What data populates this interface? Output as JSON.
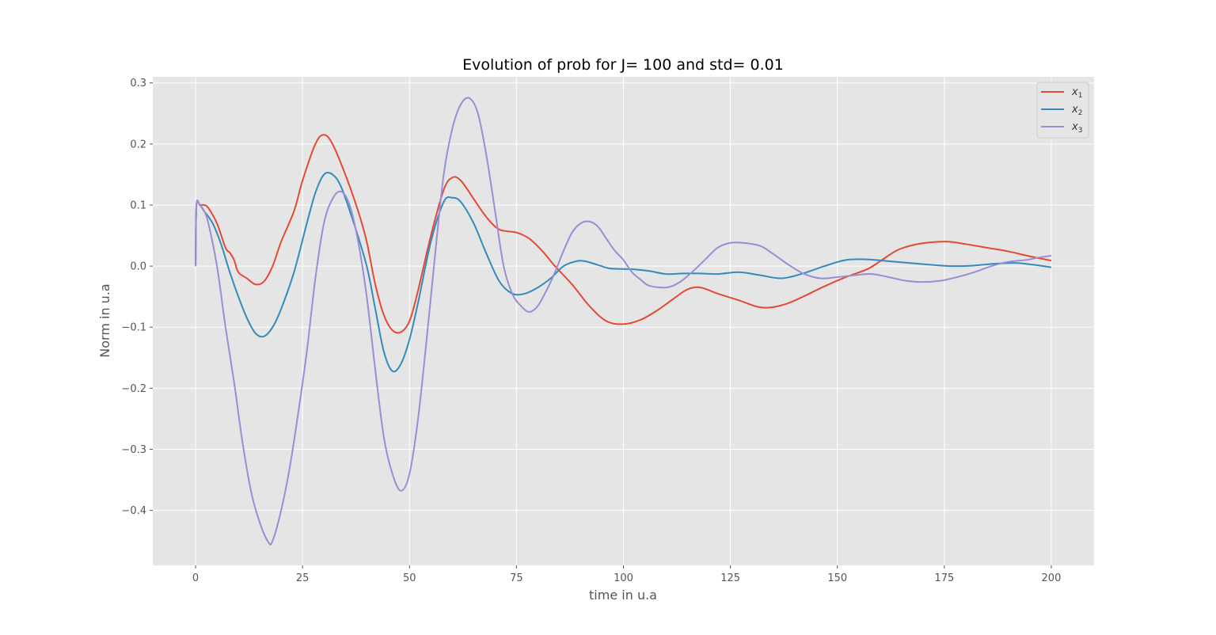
{
  "chart_data": {
    "type": "line",
    "title": "Evolution of prob for J= 100 and std= 0.01",
    "xlabel": "time in u.a",
    "ylabel": "Norm in u.a",
    "xlim": [
      -10,
      210
    ],
    "ylim": [
      -0.49,
      0.31
    ],
    "xticks": [
      0,
      25,
      50,
      75,
      100,
      125,
      150,
      175,
      200
    ],
    "yticks": [
      0.3,
      0.2,
      0.1,
      0.0,
      -0.1,
      -0.2,
      -0.3,
      -0.4
    ],
    "ytick_labels": [
      "0.3",
      "0.2",
      "0.1",
      "0.0",
      "−0.1",
      "−0.2",
      "−0.3",
      "−0.4"
    ],
    "grid": true,
    "legend_position": "top-right",
    "background": "#e5e5e5",
    "series": [
      {
        "name": "x1",
        "legend_base": "x",
        "legend_sub": "1",
        "color": "#e24a33",
        "points": [
          [
            0,
            0
          ],
          [
            0.2,
            0.1
          ],
          [
            1,
            0.1
          ],
          [
            2,
            0.1
          ],
          [
            3,
            0.095
          ],
          [
            5,
            0.07
          ],
          [
            7,
            0.03
          ],
          [
            8,
            0.022
          ],
          [
            9,
            0.01
          ],
          [
            10,
            -0.01
          ],
          [
            12,
            -0.02
          ],
          [
            14,
            -0.03
          ],
          [
            16,
            -0.025
          ],
          [
            18,
            0
          ],
          [
            20,
            0.04
          ],
          [
            23,
            0.09
          ],
          [
            25,
            0.14
          ],
          [
            28,
            0.2
          ],
          [
            30,
            0.215
          ],
          [
            32,
            0.2
          ],
          [
            35,
            0.15
          ],
          [
            38,
            0.09
          ],
          [
            40,
            0.04
          ],
          [
            42,
            -0.03
          ],
          [
            44,
            -0.08
          ],
          [
            46,
            -0.105
          ],
          [
            48,
            -0.108
          ],
          [
            50,
            -0.09
          ],
          [
            52,
            -0.04
          ],
          [
            55,
            0.05
          ],
          [
            58,
            0.125
          ],
          [
            60,
            0.145
          ],
          [
            62,
            0.14
          ],
          [
            65,
            0.11
          ],
          [
            68,
            0.08
          ],
          [
            71,
            0.06
          ],
          [
            75,
            0.055
          ],
          [
            78,
            0.045
          ],
          [
            81,
            0.025
          ],
          [
            84,
            0
          ],
          [
            88,
            -0.03
          ],
          [
            92,
            -0.065
          ],
          [
            96,
            -0.09
          ],
          [
            100,
            -0.095
          ],
          [
            104,
            -0.088
          ],
          [
            108,
            -0.072
          ],
          [
            112,
            -0.052
          ],
          [
            115,
            -0.038
          ],
          [
            118,
            -0.035
          ],
          [
            122,
            -0.045
          ],
          [
            127,
            -0.056
          ],
          [
            131,
            -0.066
          ],
          [
            134,
            -0.068
          ],
          [
            138,
            -0.062
          ],
          [
            142,
            -0.05
          ],
          [
            147,
            -0.033
          ],
          [
            152,
            -0.018
          ],
          [
            157,
            -0.005
          ],
          [
            160,
            0.008
          ],
          [
            164,
            0.026
          ],
          [
            168,
            0.035
          ],
          [
            172,
            0.039
          ],
          [
            176,
            0.04
          ],
          [
            180,
            0.036
          ],
          [
            185,
            0.03
          ],
          [
            190,
            0.024
          ],
          [
            195,
            0.016
          ],
          [
            200,
            0.009
          ]
        ]
      },
      {
        "name": "x2",
        "legend_base": "x",
        "legend_sub": "2",
        "color": "#348abd",
        "points": [
          [
            0,
            0
          ],
          [
            0.2,
            0.1
          ],
          [
            1,
            0.1
          ],
          [
            2,
            0.09
          ],
          [
            4,
            0.07
          ],
          [
            6,
            0.035
          ],
          [
            8,
            -0.01
          ],
          [
            10,
            -0.05
          ],
          [
            12,
            -0.085
          ],
          [
            14,
            -0.11
          ],
          [
            16,
            -0.115
          ],
          [
            18,
            -0.1
          ],
          [
            20,
            -0.07
          ],
          [
            23,
            -0.01
          ],
          [
            26,
            0.07
          ],
          [
            28,
            0.12
          ],
          [
            30,
            0.15
          ],
          [
            32,
            0.15
          ],
          [
            34,
            0.13
          ],
          [
            37,
            0.07
          ],
          [
            40,
            0
          ],
          [
            42,
            -0.07
          ],
          [
            44,
            -0.14
          ],
          [
            46,
            -0.172
          ],
          [
            48,
            -0.16
          ],
          [
            50,
            -0.12
          ],
          [
            52,
            -0.06
          ],
          [
            55,
            0.04
          ],
          [
            58,
            0.105
          ],
          [
            60,
            0.112
          ],
          [
            62,
            0.105
          ],
          [
            65,
            0.07
          ],
          [
            68,
            0.02
          ],
          [
            71,
            -0.025
          ],
          [
            74,
            -0.045
          ],
          [
            77,
            -0.045
          ],
          [
            80,
            -0.035
          ],
          [
            83,
            -0.02
          ],
          [
            86,
            0
          ],
          [
            89,
            0.008
          ],
          [
            91,
            0.008
          ],
          [
            94,
            0.002
          ],
          [
            97,
            -0.004
          ],
          [
            102,
            -0.005
          ],
          [
            106,
            -0.008
          ],
          [
            110,
            -0.013
          ],
          [
            114,
            -0.012
          ],
          [
            118,
            -0.012
          ],
          [
            122,
            -0.013
          ],
          [
            127,
            -0.01
          ],
          [
            132,
            -0.015
          ],
          [
            137,
            -0.02
          ],
          [
            142,
            -0.012
          ],
          [
            147,
            0
          ],
          [
            152,
            0.01
          ],
          [
            157,
            0.011
          ],
          [
            162,
            0.008
          ],
          [
            167,
            0.005
          ],
          [
            172,
            0.002
          ],
          [
            177,
            0
          ],
          [
            182,
            0.001
          ],
          [
            187,
            0.004
          ],
          [
            192,
            0.005
          ],
          [
            196,
            0.002
          ],
          [
            200,
            -0.002
          ]
        ]
      },
      {
        "name": "x3",
        "legend_base": "x",
        "legend_sub": "3",
        "color": "#988ed5",
        "points": [
          [
            0,
            0
          ],
          [
            0.2,
            0.1
          ],
          [
            1,
            0.1
          ],
          [
            2,
            0.09
          ],
          [
            3,
            0.07
          ],
          [
            5,
            0
          ],
          [
            7,
            -0.1
          ],
          [
            9,
            -0.19
          ],
          [
            11,
            -0.29
          ],
          [
            13,
            -0.37
          ],
          [
            15,
            -0.42
          ],
          [
            17,
            -0.452
          ],
          [
            18,
            -0.45
          ],
          [
            20,
            -0.4
          ],
          [
            22,
            -0.33
          ],
          [
            24,
            -0.24
          ],
          [
            26,
            -0.14
          ],
          [
            28,
            -0.02
          ],
          [
            30,
            0.07
          ],
          [
            32,
            0.11
          ],
          [
            34,
            0.122
          ],
          [
            36,
            0.1
          ],
          [
            38,
            0.04
          ],
          [
            40,
            -0.05
          ],
          [
            42,
            -0.17
          ],
          [
            44,
            -0.28
          ],
          [
            46,
            -0.34
          ],
          [
            48,
            -0.368
          ],
          [
            50,
            -0.34
          ],
          [
            52,
            -0.25
          ],
          [
            54,
            -0.12
          ],
          [
            56,
            0.02
          ],
          [
            58,
            0.15
          ],
          [
            60,
            0.225
          ],
          [
            62,
            0.265
          ],
          [
            64,
            0.275
          ],
          [
            66,
            0.25
          ],
          [
            68,
            0.18
          ],
          [
            70,
            0.09
          ],
          [
            72,
            0
          ],
          [
            74,
            -0.045
          ],
          [
            76,
            -0.065
          ],
          [
            78,
            -0.075
          ],
          [
            80,
            -0.065
          ],
          [
            82,
            -0.04
          ],
          [
            84,
            -0.01
          ],
          [
            86,
            0.025
          ],
          [
            88,
            0.055
          ],
          [
            90,
            0.07
          ],
          [
            92,
            0.073
          ],
          [
            94,
            0.065
          ],
          [
            96,
            0.045
          ],
          [
            98,
            0.025
          ],
          [
            100,
            0.01
          ],
          [
            102,
            -0.01
          ],
          [
            104,
            -0.022
          ],
          [
            106,
            -0.032
          ],
          [
            110,
            -0.035
          ],
          [
            113,
            -0.027
          ],
          [
            116,
            -0.01
          ],
          [
            119,
            0.01
          ],
          [
            122,
            0.03
          ],
          [
            125,
            0.038
          ],
          [
            128,
            0.038
          ],
          [
            132,
            0.033
          ],
          [
            135,
            0.02
          ],
          [
            138,
            0.005
          ],
          [
            142,
            -0.012
          ],
          [
            146,
            -0.02
          ],
          [
            150,
            -0.018
          ],
          [
            154,
            -0.015
          ],
          [
            158,
            -0.013
          ],
          [
            162,
            -0.018
          ],
          [
            166,
            -0.024
          ],
          [
            170,
            -0.026
          ],
          [
            174,
            -0.024
          ],
          [
            178,
            -0.018
          ],
          [
            182,
            -0.01
          ],
          [
            186,
            0
          ],
          [
            190,
            0.007
          ],
          [
            194,
            0.01
          ],
          [
            197,
            0.014
          ],
          [
            200,
            0.017
          ]
        ]
      }
    ]
  }
}
